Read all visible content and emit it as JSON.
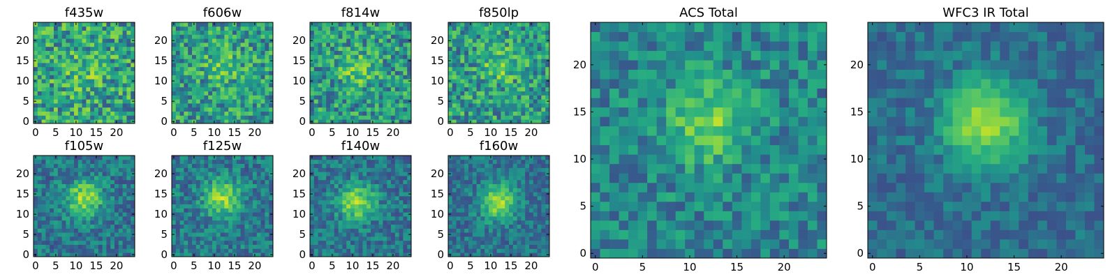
{
  "chart_data": [
    {
      "type": "heatmap",
      "title": "f435w",
      "x_range": [
        0,
        24
      ],
      "y_range": [
        0,
        24
      ],
      "x_ticks": [
        "0",
        "5",
        "10",
        "15",
        "20"
      ],
      "y_ticks": [
        "0",
        "5",
        "10",
        "15",
        "20"
      ],
      "colormap": "viridis",
      "grid_size": 25,
      "peak_center": [
        12,
        13
      ],
      "peak_strength": 0.2,
      "noise_level": 0.5,
      "seed": 1
    },
    {
      "type": "heatmap",
      "title": "f606w",
      "x_range": [
        0,
        24
      ],
      "y_range": [
        0,
        24
      ],
      "x_ticks": [
        "0",
        "5",
        "10",
        "15",
        "20"
      ],
      "y_ticks": [
        "0",
        "5",
        "10",
        "15",
        "20"
      ],
      "colormap": "viridis",
      "grid_size": 25,
      "peak_center": [
        12,
        14
      ],
      "peak_strength": 0.3,
      "noise_level": 0.45,
      "seed": 2
    },
    {
      "type": "heatmap",
      "title": "f814w",
      "x_range": [
        0,
        24
      ],
      "y_range": [
        0,
        24
      ],
      "x_ticks": [
        "0",
        "5",
        "10",
        "15",
        "20"
      ],
      "y_ticks": [
        "0",
        "5",
        "10",
        "15",
        "20"
      ],
      "colormap": "viridis",
      "grid_size": 25,
      "peak_center": [
        11,
        13
      ],
      "peak_strength": 0.35,
      "noise_level": 0.45,
      "seed": 3
    },
    {
      "type": "heatmap",
      "title": "f850lp",
      "x_range": [
        0,
        24
      ],
      "y_range": [
        0,
        24
      ],
      "x_ticks": [
        "0",
        "5",
        "10",
        "15",
        "20"
      ],
      "y_ticks": [
        "0",
        "5",
        "10",
        "15",
        "20"
      ],
      "colormap": "viridis",
      "grid_size": 25,
      "peak_center": [
        12,
        14
      ],
      "peak_strength": 0.3,
      "noise_level": 0.45,
      "seed": 4
    },
    {
      "type": "heatmap",
      "title": "f105w",
      "x_range": [
        0,
        24
      ],
      "y_range": [
        0,
        24
      ],
      "x_ticks": [
        "0",
        "5",
        "10",
        "15",
        "20"
      ],
      "y_ticks": [
        "0",
        "5",
        "10",
        "15",
        "20"
      ],
      "colormap": "viridis",
      "grid_size": 25,
      "peak_center": [
        12,
        14
      ],
      "peak_strength": 0.75,
      "noise_level": 0.3,
      "seed": 5
    },
    {
      "type": "heatmap",
      "title": "f125w",
      "x_range": [
        0,
        24
      ],
      "y_range": [
        0,
        24
      ],
      "x_ticks": [
        "0",
        "5",
        "10",
        "15",
        "20"
      ],
      "y_ticks": [
        "0",
        "5",
        "10",
        "15",
        "20"
      ],
      "colormap": "viridis",
      "grid_size": 25,
      "peak_center": [
        12,
        14
      ],
      "peak_strength": 0.7,
      "noise_level": 0.3,
      "seed": 6
    },
    {
      "type": "heatmap",
      "title": "f140w",
      "x_range": [
        0,
        24
      ],
      "y_range": [
        0,
        24
      ],
      "x_ticks": [
        "0",
        "5",
        "10",
        "15",
        "20"
      ],
      "y_ticks": [
        "0",
        "5",
        "10",
        "15",
        "20"
      ],
      "colormap": "viridis",
      "grid_size": 25,
      "peak_center": [
        11,
        13
      ],
      "peak_strength": 0.75,
      "noise_level": 0.28,
      "seed": 7
    },
    {
      "type": "heatmap",
      "title": "f160w",
      "x_range": [
        0,
        24
      ],
      "y_range": [
        0,
        24
      ],
      "x_ticks": [
        "0",
        "5",
        "10",
        "15",
        "20"
      ],
      "y_ticks": [
        "0",
        "5",
        "10",
        "15",
        "20"
      ],
      "colormap": "viridis",
      "grid_size": 25,
      "peak_center": [
        12,
        13
      ],
      "peak_strength": 0.8,
      "noise_level": 0.25,
      "seed": 8
    },
    {
      "type": "heatmap",
      "title": "ACS Total",
      "x_range": [
        0,
        24
      ],
      "y_range": [
        0,
        24
      ],
      "x_ticks": [
        "0",
        "5",
        "10",
        "15",
        "20"
      ],
      "y_ticks": [
        "0",
        "5",
        "10",
        "15",
        "20"
      ],
      "colormap": "viridis",
      "grid_size": 25,
      "peak_center": [
        12,
        14
      ],
      "peak_strength": 0.55,
      "noise_level": 0.3,
      "seed": 9
    },
    {
      "type": "heatmap",
      "title": "WFC3 IR Total",
      "x_range": [
        0,
        24
      ],
      "y_range": [
        0,
        24
      ],
      "x_ticks": [
        "0",
        "5",
        "10",
        "15",
        "20"
      ],
      "y_ticks": [
        "0",
        "5",
        "10",
        "15",
        "20"
      ],
      "colormap": "viridis",
      "grid_size": 25,
      "peak_center": [
        12,
        14
      ],
      "peak_strength": 0.85,
      "noise_level": 0.18,
      "seed": 10
    }
  ]
}
